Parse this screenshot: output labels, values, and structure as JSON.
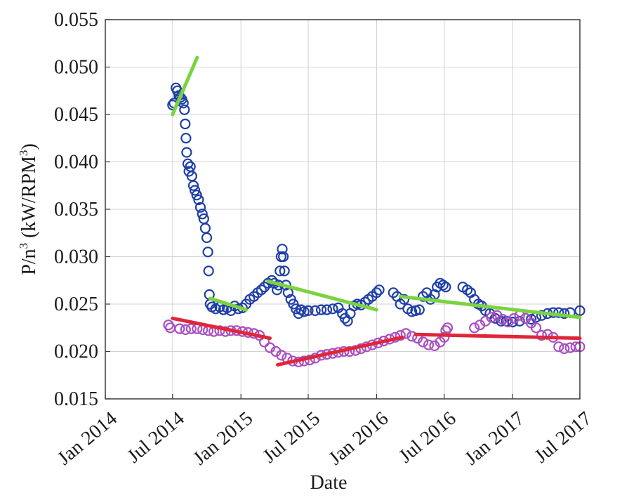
{
  "chart_data": {
    "type": "scatter",
    "title": "",
    "xlabel": "Date",
    "ylabel": "P/n³ (kW/RPM³)",
    "ylabel_parts": {
      "main": "P/n",
      "sup1": "3",
      "mid": " (kW/RPM",
      "sup2": "3",
      "end": ")"
    },
    "grid": true,
    "xlim": [
      "2014-01",
      "2017-07"
    ],
    "ylim": [
      0.015,
      0.055
    ],
    "xticks": [
      {
        "date": "2014-01",
        "label": "Jan 2014"
      },
      {
        "date": "2014-07",
        "label": "Jul 2014"
      },
      {
        "date": "2015-01",
        "label": "Jan 2015"
      },
      {
        "date": "2015-07",
        "label": "Jul 2015"
      },
      {
        "date": "2016-01",
        "label": "Jan 2016"
      },
      {
        "date": "2016-07",
        "label": "Jul 2016"
      },
      {
        "date": "2017-01",
        "label": "Jan 2017"
      },
      {
        "date": "2017-07",
        "label": "Jul 2017"
      }
    ],
    "yticks": [
      {
        "value": 0.015,
        "label": "0.015"
      },
      {
        "value": 0.02,
        "label": "0.020"
      },
      {
        "value": 0.025,
        "label": "0.025"
      },
      {
        "value": 0.03,
        "label": "0.030"
      },
      {
        "value": 0.035,
        "label": "0.035"
      },
      {
        "value": 0.04,
        "label": "0.040"
      },
      {
        "value": 0.045,
        "label": "0.045"
      },
      {
        "value": 0.05,
        "label": "0.050"
      },
      {
        "value": 0.055,
        "label": "0.055"
      }
    ],
    "series": [
      {
        "kind": "scatter",
        "color": "#1f3fa8",
        "values": [
          [
            "2014-07-01",
            0.046
          ],
          [
            "2014-07-05",
            0.0462
          ],
          [
            "2014-07-10",
            0.0478
          ],
          [
            "2014-07-14",
            0.0475
          ],
          [
            "2014-07-18",
            0.047
          ],
          [
            "2014-07-22",
            0.0468
          ],
          [
            "2014-07-26",
            0.0466
          ],
          [
            "2014-07-30",
            0.0462
          ],
          [
            "2014-08-02",
            0.0455
          ],
          [
            "2014-08-04",
            0.044
          ],
          [
            "2014-08-06",
            0.0425
          ],
          [
            "2014-08-08",
            0.041
          ],
          [
            "2014-08-11",
            0.0398
          ],
          [
            "2014-08-14",
            0.039
          ],
          [
            "2014-08-18",
            0.0395
          ],
          [
            "2014-08-22",
            0.0385
          ],
          [
            "2014-08-26",
            0.0375
          ],
          [
            "2014-08-30",
            0.037
          ],
          [
            "2014-09-04",
            0.0365
          ],
          [
            "2014-09-09",
            0.036
          ],
          [
            "2014-09-14",
            0.0352
          ],
          [
            "2014-09-19",
            0.0345
          ],
          [
            "2014-09-23",
            0.034
          ],
          [
            "2014-09-27",
            0.033
          ],
          [
            "2014-10-01",
            0.032
          ],
          [
            "2014-10-04",
            0.0305
          ],
          [
            "2014-10-06",
            0.0285
          ],
          [
            "2014-10-08",
            0.026
          ],
          [
            "2014-10-10",
            0.025
          ],
          [
            "2014-10-15",
            0.0247
          ],
          [
            "2014-10-25",
            0.0245
          ],
          [
            "2014-11-05",
            0.0247
          ],
          [
            "2014-11-15",
            0.0244
          ],
          [
            "2014-11-25",
            0.0246
          ],
          [
            "2014-12-05",
            0.0243
          ],
          [
            "2014-12-15",
            0.0248
          ],
          [
            "2014-12-25",
            0.0245
          ],
          [
            "2015-01-05",
            0.0246
          ],
          [
            "2015-01-15",
            0.025
          ],
          [
            "2015-01-25",
            0.0255
          ],
          [
            "2015-02-05",
            0.0258
          ],
          [
            "2015-02-15",
            0.0262
          ],
          [
            "2015-02-25",
            0.0265
          ],
          [
            "2015-03-05",
            0.0268
          ],
          [
            "2015-03-15",
            0.0272
          ],
          [
            "2015-03-25",
            0.0275
          ],
          [
            "2015-04-01",
            0.0272
          ],
          [
            "2015-04-08",
            0.0265
          ],
          [
            "2015-04-12",
            0.027
          ],
          [
            "2015-04-16",
            0.0285
          ],
          [
            "2015-04-19",
            0.03
          ],
          [
            "2015-04-22",
            0.0308
          ],
          [
            "2015-04-25",
            0.03
          ],
          [
            "2015-04-28",
            0.0285
          ],
          [
            "2015-05-02",
            0.027
          ],
          [
            "2015-05-08",
            0.0262
          ],
          [
            "2015-05-15",
            0.0255
          ],
          [
            "2015-05-22",
            0.025
          ],
          [
            "2015-05-29",
            0.0245
          ],
          [
            "2015-06-05",
            0.024
          ],
          [
            "2015-06-12",
            0.0244
          ],
          [
            "2015-06-20",
            0.0242
          ],
          [
            "2015-07-01",
            0.0243
          ],
          [
            "2015-07-20",
            0.0243
          ],
          [
            "2015-08-05",
            0.0244
          ],
          [
            "2015-08-20",
            0.0244
          ],
          [
            "2015-09-05",
            0.0245
          ],
          [
            "2015-09-20",
            0.0246
          ],
          [
            "2015-10-01",
            0.024
          ],
          [
            "2015-10-08",
            0.0235
          ],
          [
            "2015-10-15",
            0.0232
          ],
          [
            "2015-10-22",
            0.024
          ],
          [
            "2015-11-01",
            0.0248
          ],
          [
            "2015-11-10",
            0.025
          ],
          [
            "2015-11-20",
            0.0249
          ],
          [
            "2015-12-01",
            0.0252
          ],
          [
            "2015-12-10",
            0.0255
          ],
          [
            "2015-12-20",
            0.0258
          ],
          [
            "2016-01-01",
            0.0262
          ],
          [
            "2016-01-08",
            0.0265
          ],
          [
            "2016-02-15",
            0.0262
          ],
          [
            "2016-02-25",
            0.0258
          ],
          [
            "2016-03-05",
            0.025
          ],
          [
            "2016-03-15",
            0.0255
          ],
          [
            "2016-03-25",
            0.0245
          ],
          [
            "2016-04-05",
            0.0242
          ],
          [
            "2016-04-15",
            0.0243
          ],
          [
            "2016-04-25",
            0.0244
          ],
          [
            "2016-05-05",
            0.0258
          ],
          [
            "2016-05-15",
            0.0262
          ],
          [
            "2016-05-25",
            0.0255
          ],
          [
            "2016-06-05",
            0.026
          ],
          [
            "2016-06-12",
            0.0268
          ],
          [
            "2016-06-20",
            0.0272
          ],
          [
            "2016-06-28",
            0.027
          ],
          [
            "2016-07-05",
            0.0268
          ],
          [
            "2016-08-20",
            0.0268
          ],
          [
            "2016-09-01",
            0.0265
          ],
          [
            "2016-09-10",
            0.0262
          ],
          [
            "2016-09-20",
            0.0255
          ],
          [
            "2016-10-01",
            0.025
          ],
          [
            "2016-10-10",
            0.0248
          ],
          [
            "2016-10-20",
            0.0243
          ],
          [
            "2016-11-01",
            0.024
          ],
          [
            "2016-11-15",
            0.0235
          ],
          [
            "2016-12-01",
            0.0232
          ],
          [
            "2016-12-15",
            0.0232
          ],
          [
            "2017-01-01",
            0.0231
          ],
          [
            "2017-01-20",
            0.0232
          ],
          [
            "2017-02-05",
            0.0235
          ],
          [
            "2017-02-20",
            0.0234
          ],
          [
            "2017-03-05",
            0.0236
          ],
          [
            "2017-03-20",
            0.0238
          ],
          [
            "2017-04-05",
            0.024
          ],
          [
            "2017-04-20",
            0.0241
          ],
          [
            "2017-05-05",
            0.0241
          ],
          [
            "2017-05-20",
            0.024
          ],
          [
            "2017-06-05",
            0.0241
          ],
          [
            "2017-07-01",
            0.0243
          ]
        ]
      },
      {
        "kind": "scatter",
        "color": "#a94fc0",
        "values": [
          [
            "2014-06-20",
            0.0228
          ],
          [
            "2014-06-25",
            0.0225
          ],
          [
            "2014-07-20",
            0.0224
          ],
          [
            "2014-08-05",
            0.0223
          ],
          [
            "2014-08-20",
            0.0224
          ],
          [
            "2014-09-05",
            0.0224
          ],
          [
            "2014-09-20",
            0.0223
          ],
          [
            "2014-10-05",
            0.0222
          ],
          [
            "2014-10-20",
            0.0221
          ],
          [
            "2014-11-05",
            0.0222
          ],
          [
            "2014-11-20",
            0.0221
          ],
          [
            "2014-12-05",
            0.0222
          ],
          [
            "2014-12-20",
            0.0222
          ],
          [
            "2015-01-05",
            0.0221
          ],
          [
            "2015-01-20",
            0.022
          ],
          [
            "2015-02-05",
            0.0219
          ],
          [
            "2015-02-20",
            0.0217
          ],
          [
            "2015-03-05",
            0.021
          ],
          [
            "2015-03-20",
            0.0204
          ],
          [
            "2015-04-05",
            0.02
          ],
          [
            "2015-04-20",
            0.0196
          ],
          [
            "2015-05-05",
            0.0193
          ],
          [
            "2015-05-20",
            0.019
          ],
          [
            "2015-06-05",
            0.0189
          ],
          [
            "2015-06-20",
            0.019
          ],
          [
            "2015-07-05",
            0.0191
          ],
          [
            "2015-07-20",
            0.0193
          ],
          [
            "2015-08-05",
            0.0196
          ],
          [
            "2015-08-20",
            0.0197
          ],
          [
            "2015-09-05",
            0.0198
          ],
          [
            "2015-09-20",
            0.0199
          ],
          [
            "2015-10-05",
            0.02
          ],
          [
            "2015-10-20",
            0.02
          ],
          [
            "2015-11-05",
            0.0201
          ],
          [
            "2015-11-20",
            0.0203
          ],
          [
            "2015-12-05",
            0.0205
          ],
          [
            "2015-12-20",
            0.0207
          ],
          [
            "2016-01-05",
            0.0209
          ],
          [
            "2016-01-20",
            0.0211
          ],
          [
            "2016-02-05",
            0.0213
          ],
          [
            "2016-02-20",
            0.0215
          ],
          [
            "2016-03-05",
            0.0217
          ],
          [
            "2016-03-20",
            0.0219
          ],
          [
            "2016-04-05",
            0.0216
          ],
          [
            "2016-04-20",
            0.0214
          ],
          [
            "2016-05-05",
            0.021
          ],
          [
            "2016-05-20",
            0.0207
          ],
          [
            "2016-06-05",
            0.0206
          ],
          [
            "2016-06-20",
            0.021
          ],
          [
            "2016-07-01",
            0.0215
          ],
          [
            "2016-07-05",
            0.0222
          ],
          [
            "2016-07-10",
            0.0225
          ],
          [
            "2016-09-20",
            0.0225
          ],
          [
            "2016-10-05",
            0.0228
          ],
          [
            "2016-10-20",
            0.0232
          ],
          [
            "2016-11-05",
            0.0236
          ],
          [
            "2016-11-20",
            0.0238
          ],
          [
            "2016-12-05",
            0.0234
          ],
          [
            "2016-12-20",
            0.0231
          ],
          [
            "2017-01-05",
            0.0235
          ],
          [
            "2017-01-20",
            0.0238
          ],
          [
            "2017-02-05",
            0.0235
          ],
          [
            "2017-02-20",
            0.023
          ],
          [
            "2017-03-05",
            0.0225
          ],
          [
            "2017-03-20",
            0.0217
          ],
          [
            "2017-04-05",
            0.0218
          ],
          [
            "2017-04-20",
            0.0215
          ],
          [
            "2017-05-05",
            0.0205
          ],
          [
            "2017-05-20",
            0.0203
          ],
          [
            "2017-06-05",
            0.0204
          ],
          [
            "2017-06-20",
            0.0205
          ],
          [
            "2017-07-01",
            0.0205
          ]
        ]
      },
      {
        "kind": "line",
        "color": "#7ad33f",
        "segments": [
          [
            [
              "2014-07-01",
              0.045
            ],
            [
              "2014-09-05",
              0.051
            ]
          ],
          [
            [
              "2014-10-10",
              0.0256
            ],
            [
              "2015-01-15",
              0.0244
            ]
          ],
          [
            [
              "2015-03-15",
              0.0274
            ],
            [
              "2016-01-01",
              0.0244
            ]
          ],
          [
            [
              "2016-03-05",
              0.0258
            ],
            [
              "2017-07-01",
              0.0236
            ]
          ]
        ]
      },
      {
        "kind": "line",
        "color": "#e0263a",
        "segments": [
          [
            [
              "2014-07-01",
              0.0235
            ],
            [
              "2015-03-20",
              0.0214
            ]
          ],
          [
            [
              "2015-04-10",
              0.0186
            ],
            [
              "2016-03-10",
              0.0215
            ]
          ],
          [
            [
              "2016-04-15",
              0.0218
            ],
            [
              "2017-07-01",
              0.0214
            ]
          ]
        ]
      }
    ]
  }
}
